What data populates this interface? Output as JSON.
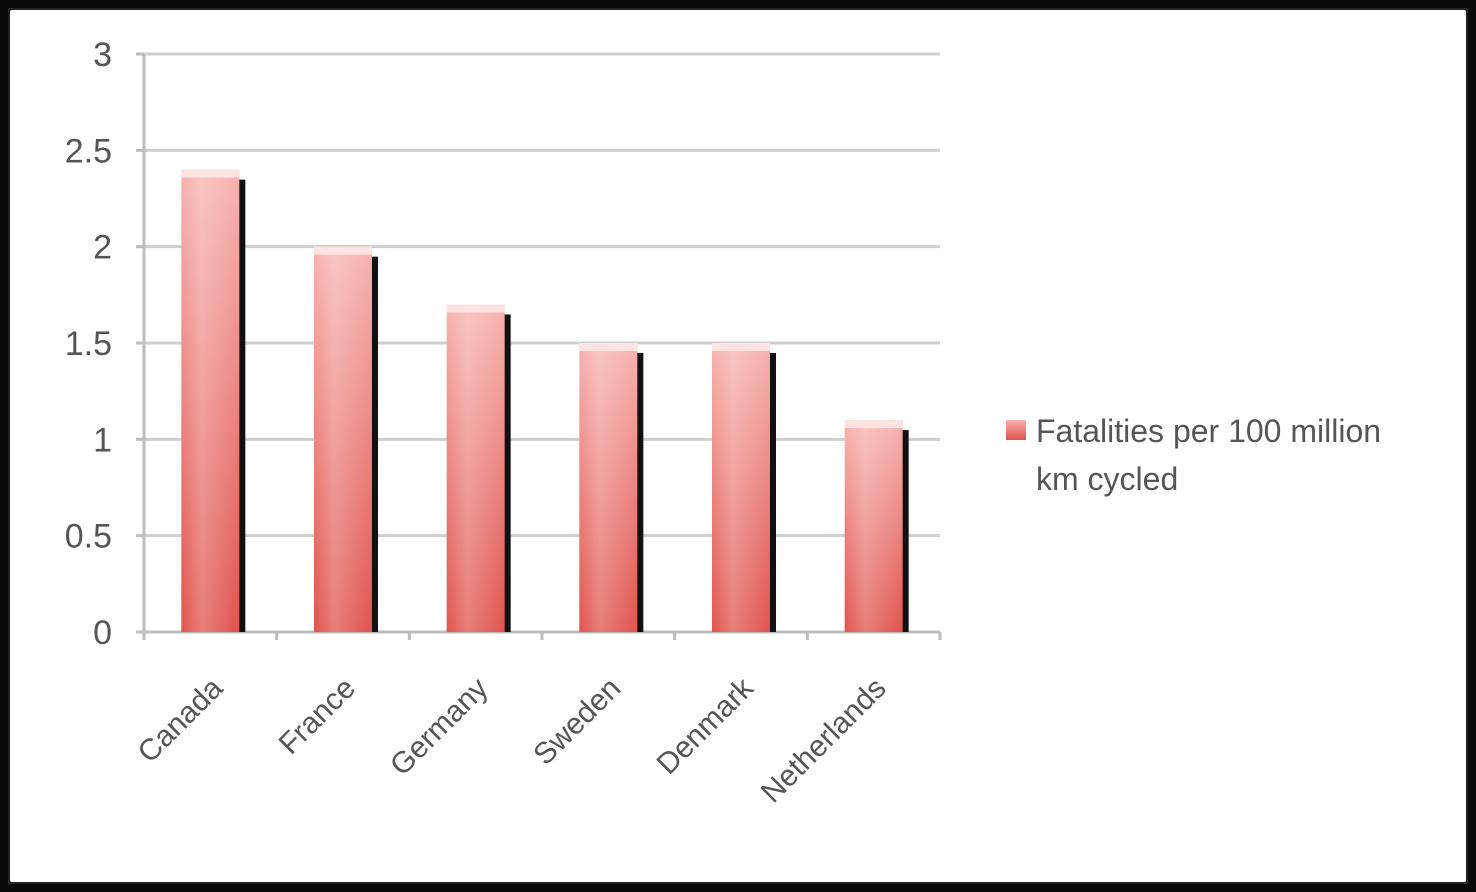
{
  "chart_data": {
    "type": "bar",
    "categories": [
      "Canada",
      "France",
      "Germany",
      "Sweden",
      "Denmark",
      "Netherlands"
    ],
    "series": [
      {
        "name": "Fatalities per 100 million km cycled",
        "values": [
          2.4,
          2.0,
          1.7,
          1.5,
          1.5,
          1.1
        ]
      }
    ],
    "title": "",
    "xlabel": "",
    "ylabel": "",
    "ylim": [
      0,
      3
    ],
    "yticks": [
      "0",
      "0.5",
      "1",
      "1.5",
      "2",
      "2.5",
      "3"
    ],
    "grid": true,
    "legend_position": "right",
    "legend_lines": [
      "Fatalities per 100 million",
      "km cycled"
    ],
    "colors": {
      "bar_light": "#f7b3b0",
      "bar_dark": "#e0534d",
      "bar_shadow": "#111111",
      "grid": "#cfcfcf",
      "axis": "#bdbdbd"
    }
  }
}
